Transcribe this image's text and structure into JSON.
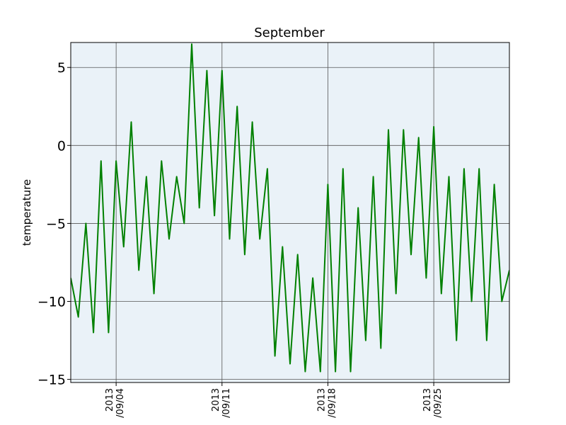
{
  "chart_data": {
    "type": "line",
    "title": "September",
    "xlabel": "",
    "ylabel": "temperature",
    "xlim": [
      "2013-09-01",
      "2013-09-30"
    ],
    "ylim": [
      -15.2,
      6.6
    ],
    "grid": true,
    "background": "#eaf2f8",
    "series": [
      {
        "color": "#008000",
        "x": [
          "2013-09-01",
          "2013-09-01 12:00",
          "2013-09-02",
          "2013-09-02 12:00",
          "2013-09-03",
          "2013-09-03 12:00",
          "2013-09-04",
          "2013-09-04 12:00",
          "2013-09-05",
          "2013-09-05 12:00",
          "2013-09-06",
          "2013-09-06 12:00",
          "2013-09-07",
          "2013-09-07 12:00",
          "2013-09-08",
          "2013-09-08 12:00",
          "2013-09-09",
          "2013-09-09 12:00",
          "2013-09-10",
          "2013-09-10 12:00",
          "2013-09-11",
          "2013-09-11 12:00",
          "2013-09-12",
          "2013-09-12 12:00",
          "2013-09-13",
          "2013-09-13 12:00",
          "2013-09-14",
          "2013-09-14 12:00",
          "2013-09-15",
          "2013-09-15 12:00",
          "2013-09-16",
          "2013-09-16 12:00",
          "2013-09-17",
          "2013-09-17 12:00",
          "2013-09-18",
          "2013-09-18 12:00",
          "2013-09-19",
          "2013-09-19 12:00",
          "2013-09-20",
          "2013-09-20 12:00",
          "2013-09-21",
          "2013-09-21 12:00",
          "2013-09-22",
          "2013-09-22 12:00",
          "2013-09-23",
          "2013-09-23 12:00",
          "2013-09-24",
          "2013-09-24 12:00",
          "2013-09-25",
          "2013-09-25 12:00",
          "2013-09-26",
          "2013-09-26 12:00",
          "2013-09-27",
          "2013-09-27 12:00",
          "2013-09-28",
          "2013-09-28 12:00",
          "2013-09-29",
          "2013-09-29 12:00",
          "2013-09-30"
        ],
        "y": [
          -8.5,
          -11.0,
          -5.0,
          -12.0,
          -1.0,
          -12.0,
          -1.0,
          -6.5,
          1.5,
          -8.0,
          -2.0,
          -9.5,
          -1.0,
          -6.0,
          -2.0,
          -5.0,
          6.5,
          -4.0,
          4.8,
          -4.5,
          4.8,
          -6.0,
          2.5,
          -7.0,
          1.5,
          -6.0,
          -1.5,
          -13.5,
          -6.5,
          -14.0,
          -7.0,
          -14.5,
          -8.5,
          -14.5,
          -2.5,
          -14.5,
          -1.5,
          -14.5,
          -4.0,
          -12.5,
          -2.0,
          -13.0,
          1.0,
          -9.5,
          1.0,
          -7.0,
          0.5,
          -8.5,
          1.2,
          -9.5,
          -2.0,
          -12.5,
          -1.5,
          -10.0,
          -1.5,
          -12.5,
          -2.5,
          -10.0,
          -8.0
        ]
      }
    ],
    "xticks": [
      {
        "date": "2013-09-04",
        "label_year": "2013",
        "label_md": "/09/04"
      },
      {
        "date": "2013-09-11",
        "label_year": "2013",
        "label_md": "/09/11"
      },
      {
        "date": "2013-09-18",
        "label_year": "2013",
        "label_md": "/09/18"
      },
      {
        "date": "2013-09-25",
        "label_year": "2013",
        "label_md": "/09/25"
      }
    ],
    "yticks": [
      {
        "value": 5,
        "label": "5"
      },
      {
        "value": 0,
        "label": "0"
      },
      {
        "value": -5,
        "label": "−5"
      },
      {
        "value": -10,
        "label": "−10"
      },
      {
        "value": -15,
        "label": "−15"
      }
    ]
  }
}
